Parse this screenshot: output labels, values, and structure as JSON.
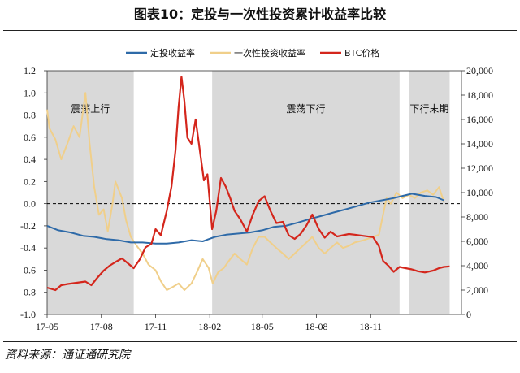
{
  "figure": {
    "title": "图表10：定投与一次性投资累计收益率比较",
    "source": "资料来源：通证通研究院"
  },
  "colors": {
    "dca": "#2e6aa8",
    "lump": "#f0cf8a",
    "btc": "#d4261c",
    "band": "#d9d9d9"
  },
  "chart_data": {
    "type": "line",
    "x_ticks": [
      "17-05",
      "17-08",
      "17-11",
      "18-02",
      "18-05",
      "18-08",
      "18-11"
    ],
    "x_range": [
      "2017-05",
      "2019-02"
    ],
    "y_left": {
      "ticks": [
        "-1.0",
        "-0.8",
        "-0.6",
        "-0.4",
        "-0.2",
        "0.0",
        "0.2",
        "0.4",
        "0.6",
        "0.8",
        "1.0",
        "1.2"
      ],
      "range": [
        -1.0,
        1.2
      ]
    },
    "y_right": {
      "ticks": [
        "0",
        "2,000",
        "4,000",
        "6,000",
        "8,000",
        "10,000",
        "12,000",
        "14,000",
        "16,000",
        "18,000",
        "20,000"
      ],
      "range": [
        0,
        20000
      ]
    },
    "reference_line": {
      "y": 0.0,
      "style": "dashed"
    },
    "bands": [
      {
        "label": "震荡上行",
        "start": "2017-05",
        "end": "2017-09-25"
      },
      {
        "label": "震荡下行",
        "start": "2018-02-05",
        "end": "2018-12-20"
      },
      {
        "label": "下行末期",
        "start": "2019-01-05",
        "end": "2019-03-15"
      }
    ],
    "legend_position": "top",
    "series": [
      {
        "name": "定投收益率",
        "axis": "left",
        "points": [
          [
            "2017-05-01",
            -0.2
          ],
          [
            "2017-05-20",
            -0.24
          ],
          [
            "2017-06-10",
            -0.26
          ],
          [
            "2017-07-01",
            -0.29
          ],
          [
            "2017-07-20",
            -0.3
          ],
          [
            "2017-08-10",
            -0.32
          ],
          [
            "2017-08-30",
            -0.33
          ],
          [
            "2017-09-20",
            -0.35
          ],
          [
            "2017-10-10",
            -0.35
          ],
          [
            "2017-11-01",
            -0.36
          ],
          [
            "2017-11-20",
            -0.36
          ],
          [
            "2017-12-10",
            -0.35
          ],
          [
            "2018-01-01",
            -0.33
          ],
          [
            "2018-01-20",
            -0.34
          ],
          [
            "2018-02-10",
            -0.3
          ],
          [
            "2018-03-01",
            -0.28
          ],
          [
            "2018-03-20",
            -0.27
          ],
          [
            "2018-04-10",
            -0.26
          ],
          [
            "2018-05-01",
            -0.24
          ],
          [
            "2018-05-20",
            -0.21
          ],
          [
            "2018-06-10",
            -0.2
          ],
          [
            "2018-07-01",
            -0.17
          ],
          [
            "2018-07-20",
            -0.14
          ],
          [
            "2018-08-10",
            -0.11
          ],
          [
            "2018-08-30",
            -0.08
          ],
          [
            "2018-09-20",
            -0.05
          ],
          [
            "2018-10-10",
            -0.02
          ],
          [
            "2018-10-30",
            0.01
          ],
          [
            "2018-11-20",
            0.03
          ],
          [
            "2018-12-10",
            0.05
          ],
          [
            "2018-12-25",
            0.07
          ],
          [
            "2019-01-10",
            0.09
          ],
          [
            "2019-02-01",
            0.07
          ],
          [
            "2019-02-20",
            0.06
          ],
          [
            "2019-03-05",
            0.03
          ]
        ]
      },
      {
        "name": "一次性投资收益率",
        "axis": "left",
        "points": [
          [
            "2017-05-01",
            0.85
          ],
          [
            "2017-05-05",
            0.68
          ],
          [
            "2017-05-15",
            0.58
          ],
          [
            "2017-05-25",
            0.4
          ],
          [
            "2017-06-05",
            0.55
          ],
          [
            "2017-06-15",
            0.7
          ],
          [
            "2017-06-25",
            0.6
          ],
          [
            "2017-07-05",
            1.0
          ],
          [
            "2017-07-12",
            0.55
          ],
          [
            "2017-07-20",
            0.15
          ],
          [
            "2017-07-28",
            -0.1
          ],
          [
            "2017-08-05",
            -0.05
          ],
          [
            "2017-08-12",
            -0.25
          ],
          [
            "2017-08-20",
            0.0
          ],
          [
            "2017-08-25",
            0.2
          ],
          [
            "2017-09-05",
            0.05
          ],
          [
            "2017-09-12",
            -0.15
          ],
          [
            "2017-09-20",
            -0.3
          ],
          [
            "2017-09-30",
            -0.38
          ],
          [
            "2017-10-10",
            -0.45
          ],
          [
            "2017-10-20",
            -0.55
          ],
          [
            "2017-11-01",
            -0.6
          ],
          [
            "2017-11-10",
            -0.7
          ],
          [
            "2017-11-20",
            -0.78
          ],
          [
            "2017-12-01",
            -0.75
          ],
          [
            "2017-12-10",
            -0.72
          ],
          [
            "2017-12-20",
            -0.78
          ],
          [
            "2018-01-01",
            -0.72
          ],
          [
            "2018-01-10",
            -0.62
          ],
          [
            "2018-01-20",
            -0.5
          ],
          [
            "2018-01-30",
            -0.58
          ],
          [
            "2018-02-06",
            -0.72
          ],
          [
            "2018-02-15",
            -0.62
          ],
          [
            "2018-02-25",
            -0.58
          ],
          [
            "2018-03-05",
            -0.52
          ],
          [
            "2018-03-15",
            -0.45
          ],
          [
            "2018-03-25",
            -0.5
          ],
          [
            "2018-04-05",
            -0.55
          ],
          [
            "2018-04-15",
            -0.4
          ],
          [
            "2018-04-25",
            -0.3
          ],
          [
            "2018-05-05",
            -0.3
          ],
          [
            "2018-05-15",
            -0.35
          ],
          [
            "2018-05-25",
            -0.4
          ],
          [
            "2018-06-05",
            -0.45
          ],
          [
            "2018-06-15",
            -0.5
          ],
          [
            "2018-06-25",
            -0.45
          ],
          [
            "2018-07-05",
            -0.4
          ],
          [
            "2018-07-15",
            -0.35
          ],
          [
            "2018-07-25",
            -0.3
          ],
          [
            "2018-08-05",
            -0.4
          ],
          [
            "2018-08-15",
            -0.45
          ],
          [
            "2018-08-25",
            -0.4
          ],
          [
            "2018-09-05",
            -0.35
          ],
          [
            "2018-09-15",
            -0.4
          ],
          [
            "2018-09-25",
            -0.38
          ],
          [
            "2018-10-05",
            -0.35
          ],
          [
            "2018-10-20",
            -0.33
          ],
          [
            "2018-11-05",
            -0.3
          ],
          [
            "2018-11-15",
            -0.28
          ],
          [
            "2018-11-22",
            -0.1
          ],
          [
            "2018-11-28",
            0.05
          ],
          [
            "2018-12-05",
            0.0
          ],
          [
            "2018-12-15",
            0.1
          ],
          [
            "2018-12-25",
            0.05
          ],
          [
            "2019-01-05",
            0.08
          ],
          [
            "2019-01-15",
            0.05
          ],
          [
            "2019-01-25",
            0.1
          ],
          [
            "2019-02-05",
            0.12
          ],
          [
            "2019-02-15",
            0.08
          ],
          [
            "2019-02-25",
            0.15
          ],
          [
            "2019-03-05",
            0.02
          ]
        ]
      },
      {
        "name": "BTC价格",
        "axis": "right",
        "points": [
          [
            "2017-05-01",
            2200
          ],
          [
            "2017-05-15",
            2000
          ],
          [
            "2017-05-25",
            2400
          ],
          [
            "2017-06-05",
            2500
          ],
          [
            "2017-06-20",
            2600
          ],
          [
            "2017-07-05",
            2700
          ],
          [
            "2017-07-15",
            2400
          ],
          [
            "2017-07-25",
            3000
          ],
          [
            "2017-08-05",
            3600
          ],
          [
            "2017-08-15",
            4000
          ],
          [
            "2017-08-25",
            4300
          ],
          [
            "2017-09-05",
            4600
          ],
          [
            "2017-09-15",
            4200
          ],
          [
            "2017-09-25",
            3800
          ],
          [
            "2017-10-05",
            4500
          ],
          [
            "2017-10-15",
            5500
          ],
          [
            "2017-10-25",
            5800
          ],
          [
            "2017-11-01",
            7000
          ],
          [
            "2017-11-10",
            6500
          ],
          [
            "2017-11-20",
            8500
          ],
          [
            "2017-11-28",
            10500
          ],
          [
            "2017-12-05",
            13500
          ],
          [
            "2017-12-10",
            17000
          ],
          [
            "2017-12-15",
            19500
          ],
          [
            "2017-12-20",
            17500
          ],
          [
            "2017-12-25",
            14500
          ],
          [
            "2018-01-01",
            14000
          ],
          [
            "2018-01-08",
            16000
          ],
          [
            "2018-01-15",
            13500
          ],
          [
            "2018-01-22",
            11000
          ],
          [
            "2018-01-28",
            11500
          ],
          [
            "2018-02-05",
            7000
          ],
          [
            "2018-02-12",
            8500
          ],
          [
            "2018-02-20",
            11200
          ],
          [
            "2018-02-28",
            10500
          ],
          [
            "2018-03-08",
            9500
          ],
          [
            "2018-03-15",
            8500
          ],
          [
            "2018-03-25",
            7800
          ],
          [
            "2018-04-05",
            6800
          ],
          [
            "2018-04-15",
            8200
          ],
          [
            "2018-04-25",
            9300
          ],
          [
            "2018-05-05",
            9700
          ],
          [
            "2018-05-15",
            8500
          ],
          [
            "2018-05-25",
            7500
          ],
          [
            "2018-06-05",
            7600
          ],
          [
            "2018-06-15",
            6500
          ],
          [
            "2018-06-25",
            6200
          ],
          [
            "2018-07-05",
            6600
          ],
          [
            "2018-07-15",
            7300
          ],
          [
            "2018-07-25",
            8200
          ],
          [
            "2018-08-05",
            7000
          ],
          [
            "2018-08-15",
            6300
          ],
          [
            "2018-08-25",
            6800
          ],
          [
            "2018-09-05",
            6400
          ],
          [
            "2018-09-15",
            6500
          ],
          [
            "2018-09-25",
            6600
          ],
          [
            "2018-10-05",
            6550
          ],
          [
            "2018-10-20",
            6450
          ],
          [
            "2018-11-05",
            6350
          ],
          [
            "2018-11-15",
            5600
          ],
          [
            "2018-11-22",
            4400
          ],
          [
            "2018-12-01",
            4000
          ],
          [
            "2018-12-10",
            3500
          ],
          [
            "2018-12-20",
            3900
          ],
          [
            "2018-12-30",
            3800
          ],
          [
            "2019-01-10",
            3700
          ],
          [
            "2019-01-20",
            3550
          ],
          [
            "2019-02-01",
            3450
          ],
          [
            "2019-02-15",
            3600
          ],
          [
            "2019-02-25",
            3800
          ],
          [
            "2019-03-05",
            3900
          ],
          [
            "2019-03-15",
            3950
          ]
        ]
      }
    ]
  }
}
